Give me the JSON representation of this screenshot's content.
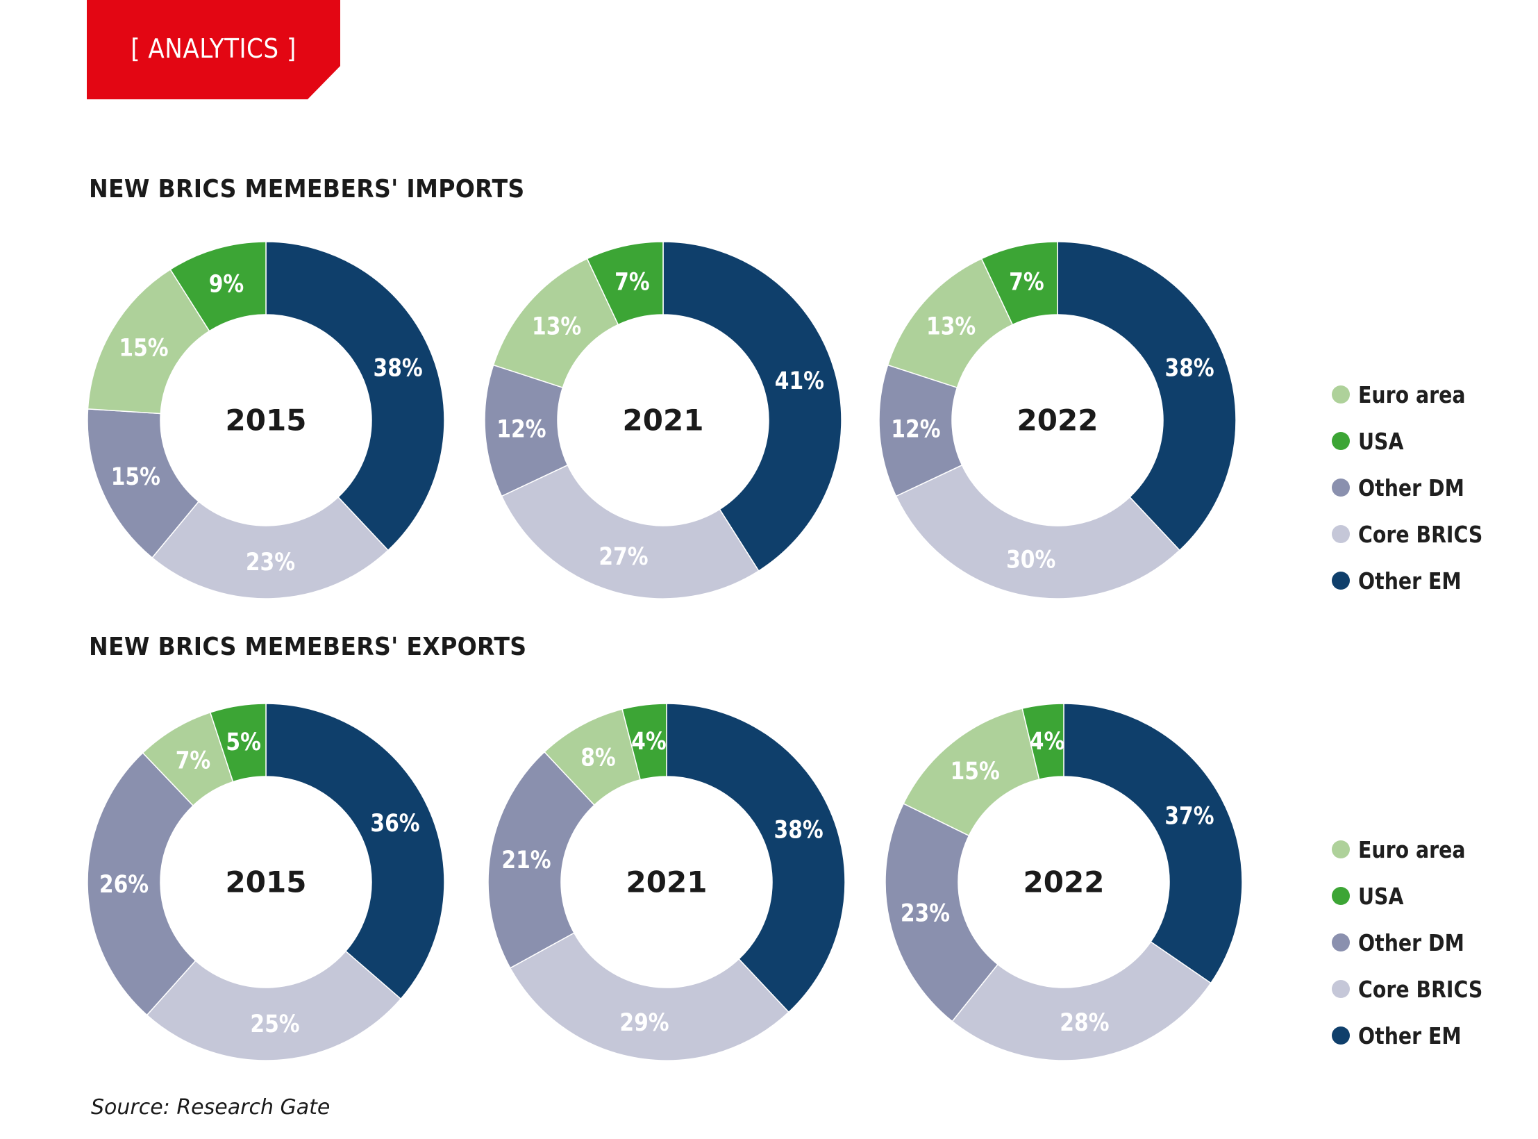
{
  "tag": {
    "label": "[ ANALYTICS ]",
    "color": "#e30613"
  },
  "colors": {
    "Euro area": "#aed19a",
    "USA": "#3ca535",
    "Other DM": "#8a90ae",
    "Core BRICS": "#c5c7d8",
    "Other EM": "#0f3f6b"
  },
  "imports": {
    "title": "NEW BRICS MEMEBERS' IMPORTS"
  },
  "exports": {
    "title": "NEW BRICS MEMEBERS' EXPORTS"
  },
  "legend": [
    "Euro area",
    "USA",
    "Other DM",
    "Core BRICS",
    "Other EM"
  ],
  "source": "Source: Research Gate",
  "chart_data": [
    {
      "type": "pie",
      "group": "imports",
      "title": "2015",
      "slices": [
        {
          "name": "Other EM",
          "value": 38
        },
        {
          "name": "Core BRICS",
          "value": 23
        },
        {
          "name": "Other DM",
          "value": 15
        },
        {
          "name": "Euro area",
          "value": 15
        },
        {
          "name": "USA",
          "value": 9
        }
      ]
    },
    {
      "type": "pie",
      "group": "imports",
      "title": "2021",
      "slices": [
        {
          "name": "Other EM",
          "value": 41
        },
        {
          "name": "Core BRICS",
          "value": 27
        },
        {
          "name": "Other DM",
          "value": 12
        },
        {
          "name": "Euro area",
          "value": 13
        },
        {
          "name": "USA",
          "value": 7
        }
      ]
    },
    {
      "type": "pie",
      "group": "imports",
      "title": "2022",
      "slices": [
        {
          "name": "Other EM",
          "value": 38
        },
        {
          "name": "Core BRICS",
          "value": 30
        },
        {
          "name": "Other DM",
          "value": 12
        },
        {
          "name": "Euro area",
          "value": 13
        },
        {
          "name": "USA",
          "value": 7
        }
      ]
    },
    {
      "type": "pie",
      "group": "exports",
      "title": "2015",
      "slices": [
        {
          "name": "Other EM",
          "value": 36
        },
        {
          "name": "Core BRICS",
          "value": 25
        },
        {
          "name": "Other DM",
          "value": 26
        },
        {
          "name": "Euro area",
          "value": 7
        },
        {
          "name": "USA",
          "value": 5
        }
      ]
    },
    {
      "type": "pie",
      "group": "exports",
      "title": "2021",
      "slices": [
        {
          "name": "Other EM",
          "value": 38
        },
        {
          "name": "Core BRICS",
          "value": 29
        },
        {
          "name": "Other DM",
          "value": 21
        },
        {
          "name": "Euro area",
          "value": 8
        },
        {
          "name": "USA",
          "value": 4
        }
      ]
    },
    {
      "type": "pie",
      "group": "exports",
      "title": "2022",
      "slices": [
        {
          "name": "Other EM",
          "value": 37
        },
        {
          "name": "Core BRICS",
          "value": 28
        },
        {
          "name": "Other DM",
          "value": 23
        },
        {
          "name": "Euro area",
          "value": 15
        },
        {
          "name": "USA",
          "value": 4
        }
      ]
    }
  ]
}
